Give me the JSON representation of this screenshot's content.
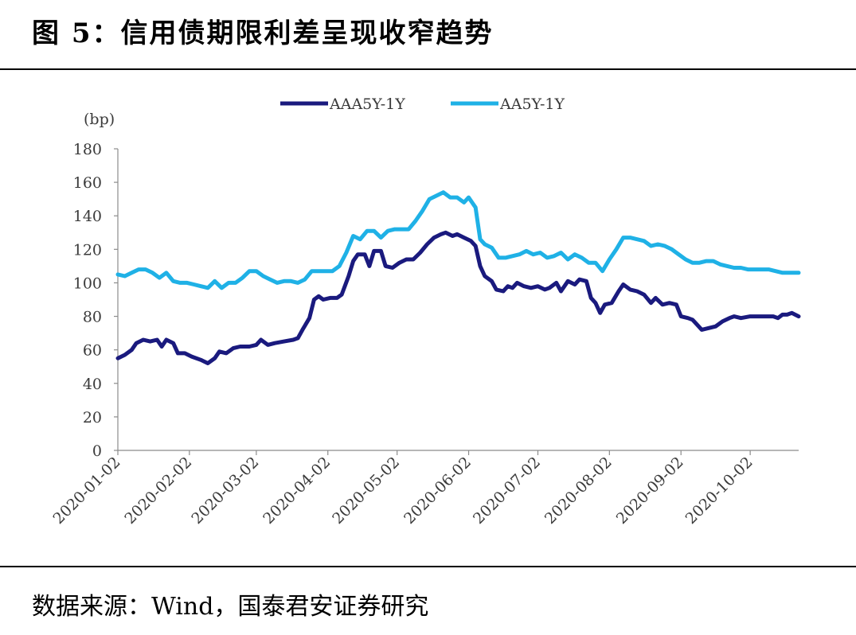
{
  "title": "图 5：信用债期限利差呈现收窄趋势",
  "source": "数据来源：Wind，国泰君安证券研究",
  "chart_data": {
    "type": "line",
    "unit_label": "(bp)",
    "ylim": [
      0,
      180
    ],
    "yticks": [
      0,
      20,
      40,
      60,
      80,
      100,
      120,
      140,
      160,
      180
    ],
    "xlim": [
      "2020-01-02",
      "2020-10-23"
    ],
    "xticks": [
      "2020-01-02",
      "2020-02-02",
      "2020-03-02",
      "2020-04-02",
      "2020-05-02",
      "2020-06-02",
      "2020-07-02",
      "2020-08-02",
      "2020-09-02",
      "2020-10-02"
    ],
    "legend_position": "top",
    "grid": false,
    "series": [
      {
        "name": "AAA5Y-1Y",
        "color": "#1a1a7e",
        "points": [
          [
            "2020-01-02",
            55
          ],
          [
            "2020-01-05",
            57
          ],
          [
            "2020-01-08",
            60
          ],
          [
            "2020-01-10",
            64
          ],
          [
            "2020-01-13",
            66
          ],
          [
            "2020-01-16",
            65
          ],
          [
            "2020-01-19",
            66
          ],
          [
            "2020-01-21",
            62
          ],
          [
            "2020-01-23",
            66
          ],
          [
            "2020-01-26",
            64
          ],
          [
            "2020-01-28",
            58
          ],
          [
            "2020-01-31",
            58
          ],
          [
            "2020-02-03",
            56
          ],
          [
            "2020-02-07",
            54
          ],
          [
            "2020-02-10",
            52
          ],
          [
            "2020-02-13",
            55
          ],
          [
            "2020-02-15",
            59
          ],
          [
            "2020-02-18",
            58
          ],
          [
            "2020-02-21",
            61
          ],
          [
            "2020-02-24",
            62
          ],
          [
            "2020-02-28",
            62
          ],
          [
            "2020-03-02",
            63
          ],
          [
            "2020-03-04",
            66
          ],
          [
            "2020-03-07",
            63
          ],
          [
            "2020-03-10",
            64
          ],
          [
            "2020-03-14",
            65
          ],
          [
            "2020-03-18",
            66
          ],
          [
            "2020-03-20",
            67
          ],
          [
            "2020-03-22",
            72
          ],
          [
            "2020-03-25",
            79
          ],
          [
            "2020-03-27",
            90
          ],
          [
            "2020-03-29",
            92
          ],
          [
            "2020-03-31",
            90
          ],
          [
            "2020-04-03",
            91
          ],
          [
            "2020-04-06",
            91
          ],
          [
            "2020-04-08",
            93
          ],
          [
            "2020-04-11",
            104
          ],
          [
            "2020-04-13",
            113
          ],
          [
            "2020-04-15",
            117
          ],
          [
            "2020-04-18",
            117
          ],
          [
            "2020-04-20",
            110
          ],
          [
            "2020-04-22",
            119
          ],
          [
            "2020-04-25",
            119
          ],
          [
            "2020-04-27",
            110
          ],
          [
            "2020-04-30",
            109
          ],
          [
            "2020-05-03",
            112
          ],
          [
            "2020-05-06",
            114
          ],
          [
            "2020-05-09",
            114
          ],
          [
            "2020-05-12",
            118
          ],
          [
            "2020-05-15",
            123
          ],
          [
            "2020-05-18",
            127
          ],
          [
            "2020-05-21",
            129
          ],
          [
            "2020-05-23",
            130
          ],
          [
            "2020-05-26",
            128
          ],
          [
            "2020-05-28",
            129
          ],
          [
            "2020-05-31",
            127
          ],
          [
            "2020-06-03",
            125
          ],
          [
            "2020-06-05",
            122
          ],
          [
            "2020-06-07",
            110
          ],
          [
            "2020-06-09",
            104
          ],
          [
            "2020-06-12",
            101
          ],
          [
            "2020-06-14",
            96
          ],
          [
            "2020-06-17",
            95
          ],
          [
            "2020-06-19",
            98
          ],
          [
            "2020-06-21",
            97
          ],
          [
            "2020-06-23",
            100
          ],
          [
            "2020-06-26",
            98
          ],
          [
            "2020-06-29",
            97
          ],
          [
            "2020-07-02",
            98
          ],
          [
            "2020-07-05",
            96
          ],
          [
            "2020-07-07",
            97
          ],
          [
            "2020-07-10",
            100
          ],
          [
            "2020-07-12",
            95
          ],
          [
            "2020-07-15",
            101
          ],
          [
            "2020-07-18",
            99
          ],
          [
            "2020-07-20",
            102
          ],
          [
            "2020-07-23",
            101
          ],
          [
            "2020-07-25",
            91
          ],
          [
            "2020-07-27",
            88
          ],
          [
            "2020-07-29",
            82
          ],
          [
            "2020-07-31",
            87
          ],
          [
            "2020-08-03",
            88
          ],
          [
            "2020-08-06",
            95
          ],
          [
            "2020-08-08",
            99
          ],
          [
            "2020-08-11",
            96
          ],
          [
            "2020-08-14",
            95
          ],
          [
            "2020-08-17",
            93
          ],
          [
            "2020-08-20",
            88
          ],
          [
            "2020-08-22",
            91
          ],
          [
            "2020-08-25",
            87
          ],
          [
            "2020-08-28",
            88
          ],
          [
            "2020-08-31",
            87
          ],
          [
            "2020-09-02",
            80
          ],
          [
            "2020-09-05",
            79
          ],
          [
            "2020-09-07",
            78
          ],
          [
            "2020-09-09",
            75
          ],
          [
            "2020-09-11",
            72
          ],
          [
            "2020-09-14",
            73
          ],
          [
            "2020-09-17",
            74
          ],
          [
            "2020-09-20",
            77
          ],
          [
            "2020-09-23",
            79
          ],
          [
            "2020-09-25",
            80
          ],
          [
            "2020-09-28",
            79
          ],
          [
            "2020-10-02",
            80
          ],
          [
            "2020-10-06",
            80
          ],
          [
            "2020-10-09",
            80
          ],
          [
            "2020-10-12",
            80
          ],
          [
            "2020-10-14",
            79
          ],
          [
            "2020-10-16",
            81
          ],
          [
            "2020-10-18",
            81
          ],
          [
            "2020-10-20",
            82
          ],
          [
            "2020-10-23",
            80
          ]
        ]
      },
      {
        "name": "AA5Y-1Y",
        "color": "#1fb1e6",
        "points": [
          [
            "2020-01-02",
            105
          ],
          [
            "2020-01-05",
            104
          ],
          [
            "2020-01-08",
            106
          ],
          [
            "2020-01-11",
            108
          ],
          [
            "2020-01-14",
            108
          ],
          [
            "2020-01-17",
            106
          ],
          [
            "2020-01-20",
            103
          ],
          [
            "2020-01-23",
            106
          ],
          [
            "2020-01-26",
            101
          ],
          [
            "2020-01-29",
            100
          ],
          [
            "2020-02-01",
            100
          ],
          [
            "2020-02-04",
            99
          ],
          [
            "2020-02-07",
            98
          ],
          [
            "2020-02-10",
            97
          ],
          [
            "2020-02-13",
            101
          ],
          [
            "2020-02-16",
            97
          ],
          [
            "2020-02-19",
            100
          ],
          [
            "2020-02-22",
            100
          ],
          [
            "2020-02-25",
            103
          ],
          [
            "2020-02-28",
            107
          ],
          [
            "2020-03-02",
            107
          ],
          [
            "2020-03-05",
            104
          ],
          [
            "2020-03-08",
            102
          ],
          [
            "2020-03-11",
            100
          ],
          [
            "2020-03-14",
            101
          ],
          [
            "2020-03-17",
            101
          ],
          [
            "2020-03-20",
            100
          ],
          [
            "2020-03-23",
            102
          ],
          [
            "2020-03-26",
            107
          ],
          [
            "2020-03-29",
            107
          ],
          [
            "2020-04-01",
            107
          ],
          [
            "2020-04-04",
            107
          ],
          [
            "2020-04-07",
            110
          ],
          [
            "2020-04-10",
            118
          ],
          [
            "2020-04-13",
            128
          ],
          [
            "2020-04-16",
            126
          ],
          [
            "2020-04-19",
            131
          ],
          [
            "2020-04-22",
            131
          ],
          [
            "2020-04-25",
            127
          ],
          [
            "2020-04-28",
            131
          ],
          [
            "2020-05-01",
            132
          ],
          [
            "2020-05-04",
            132
          ],
          [
            "2020-05-07",
            132
          ],
          [
            "2020-05-10",
            137
          ],
          [
            "2020-05-13",
            143
          ],
          [
            "2020-05-16",
            150
          ],
          [
            "2020-05-19",
            152
          ],
          [
            "2020-05-22",
            154
          ],
          [
            "2020-05-25",
            151
          ],
          [
            "2020-05-28",
            151
          ],
          [
            "2020-05-31",
            148
          ],
          [
            "2020-06-02",
            151
          ],
          [
            "2020-06-05",
            145
          ],
          [
            "2020-06-07",
            126
          ],
          [
            "2020-06-09",
            123
          ],
          [
            "2020-06-12",
            121
          ],
          [
            "2020-06-15",
            115
          ],
          [
            "2020-06-18",
            115
          ],
          [
            "2020-06-21",
            116
          ],
          [
            "2020-06-24",
            117
          ],
          [
            "2020-06-27",
            119
          ],
          [
            "2020-06-30",
            117
          ],
          [
            "2020-07-03",
            118
          ],
          [
            "2020-07-06",
            115
          ],
          [
            "2020-07-09",
            116
          ],
          [
            "2020-07-12",
            118
          ],
          [
            "2020-07-15",
            114
          ],
          [
            "2020-07-18",
            117
          ],
          [
            "2020-07-21",
            115
          ],
          [
            "2020-07-24",
            112
          ],
          [
            "2020-07-27",
            112
          ],
          [
            "2020-07-30",
            107
          ],
          [
            "2020-08-02",
            114
          ],
          [
            "2020-08-05",
            120
          ],
          [
            "2020-08-08",
            127
          ],
          [
            "2020-08-11",
            127
          ],
          [
            "2020-08-14",
            126
          ],
          [
            "2020-08-17",
            125
          ],
          [
            "2020-08-20",
            122
          ],
          [
            "2020-08-23",
            123
          ],
          [
            "2020-08-26",
            122
          ],
          [
            "2020-08-29",
            120
          ],
          [
            "2020-09-01",
            117
          ],
          [
            "2020-09-04",
            114
          ],
          [
            "2020-09-07",
            112
          ],
          [
            "2020-09-10",
            112
          ],
          [
            "2020-09-13",
            113
          ],
          [
            "2020-09-16",
            113
          ],
          [
            "2020-09-19",
            111
          ],
          [
            "2020-09-22",
            110
          ],
          [
            "2020-09-25",
            109
          ],
          [
            "2020-09-28",
            109
          ],
          [
            "2020-10-01",
            108
          ],
          [
            "2020-10-04",
            108
          ],
          [
            "2020-10-07",
            108
          ],
          [
            "2020-10-10",
            108
          ],
          [
            "2020-10-13",
            107
          ],
          [
            "2020-10-16",
            106
          ],
          [
            "2020-10-19",
            106
          ],
          [
            "2020-10-23",
            106
          ]
        ]
      }
    ]
  }
}
